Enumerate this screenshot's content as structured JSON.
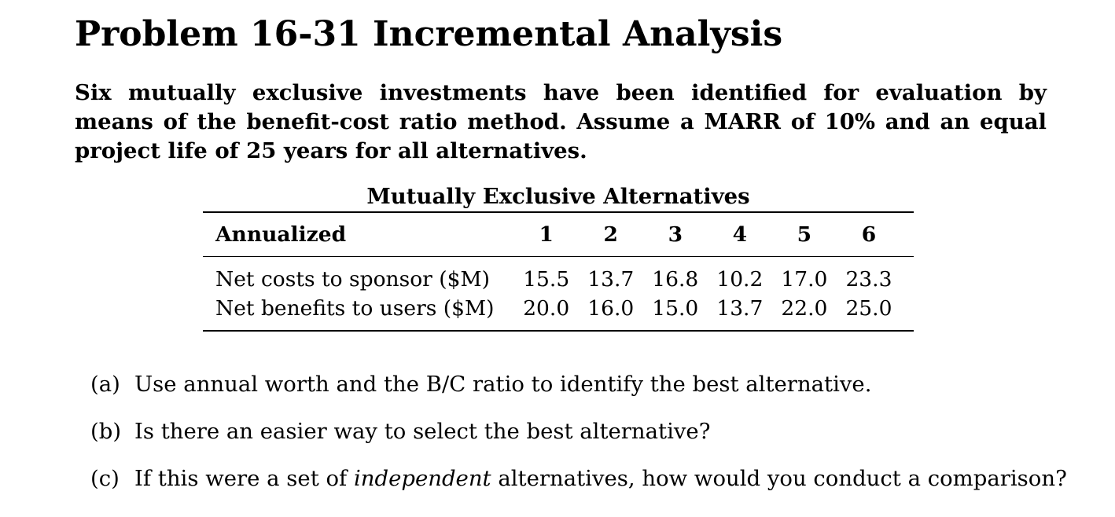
{
  "title": "Problem 16-31 Incremental Analysis",
  "intro": "Six mutually exclusive investments have been identified for evaluation by means of the benefit-cost ratio method. Assume a MARR of 10% and an equal project life of 25 years for all alternatives.",
  "table": {
    "caption": "Mutually Exclusive Alternatives",
    "header_label": "Annualized",
    "columns": [
      "1",
      "2",
      "3",
      "4",
      "5",
      "6"
    ],
    "rows": [
      {
        "label": "Net costs to sponsor ($M)",
        "values": [
          "15.5",
          "13.7",
          "16.8",
          "10.2",
          "17.0",
          "23.3"
        ]
      },
      {
        "label": "Net benefits to users ($M)",
        "values": [
          "20.0",
          "16.0",
          "15.0",
          "13.7",
          "22.0",
          "25.0"
        ]
      }
    ]
  },
  "questions": [
    {
      "label": "(a)",
      "text": "Use annual worth and the B/C ratio to identify the best alternative."
    },
    {
      "label": "(b)",
      "text": "Is there an easier way to select the best alternative?"
    },
    {
      "label": "(c)",
      "text_before": "If this were a set of ",
      "text_emphasis": "independent",
      "text_after": " alternatives, how would you conduct a comparison?"
    }
  ]
}
